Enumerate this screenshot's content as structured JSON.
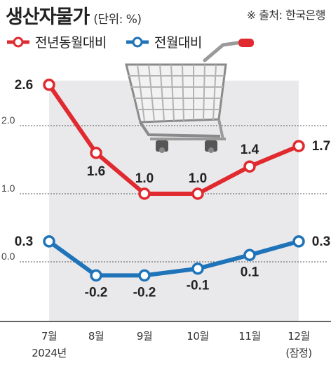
{
  "header": {
    "title": "생산자물가",
    "unit": "(단위: %)",
    "source": "※ 출처: 한국은행"
  },
  "colors": {
    "yoy": "#e02a2f",
    "mom": "#1f74b9",
    "band": "#e9e9eb"
  },
  "illustration": "shopping-cart-icon",
  "chart_data": {
    "type": "line",
    "categories": [
      "7월",
      "8월",
      "9월",
      "10월",
      "11월",
      "12월"
    ],
    "category_sublabels": [
      "2024년",
      "",
      "",
      "",
      "",
      "(잠정)"
    ],
    "series": [
      {
        "name": "전년동월대비",
        "values": [
          2.6,
          1.6,
          1.0,
          1.0,
          1.4,
          1.7
        ],
        "labels": [
          "2.6",
          "1.6",
          "1.0",
          "1.0",
          "1.4",
          "1.7"
        ]
      },
      {
        "name": "전월대비",
        "values": [
          0.3,
          -0.2,
          -0.2,
          -0.1,
          0.1,
          0.3
        ],
        "labels": [
          "0.3",
          "-0.2",
          "-0.2",
          "-0.1",
          "0.1",
          "0.3"
        ]
      }
    ],
    "yticks": [
      2.0,
      1.0,
      0.0
    ],
    "ytick_labels": [
      "2.0",
      "1.0",
      "0.0"
    ],
    "ylim": [
      -0.7,
      2.9
    ],
    "grid": true,
    "legend": "top-left"
  }
}
